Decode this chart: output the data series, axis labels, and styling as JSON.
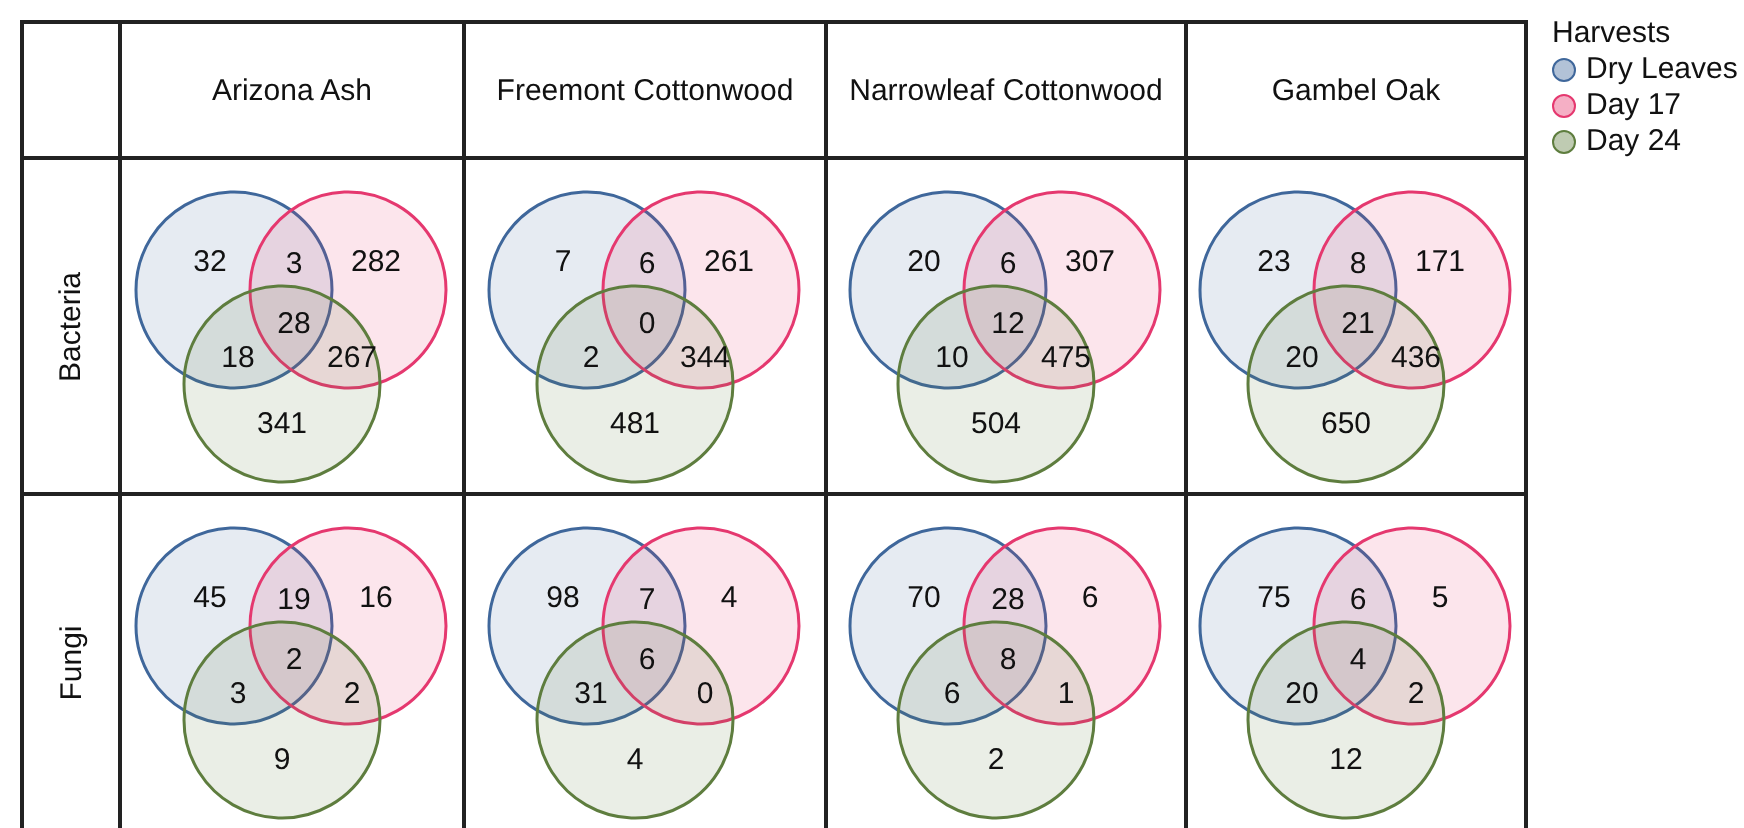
{
  "chart_data": [
    {
      "type": "other",
      "title": "Arizona Ash",
      "ylabel": "Bacteria",
      "categories": [
        null,
        null,
        null,
        null,
        null,
        null,
        null
      ],
      "values": [
        32,
        3,
        282,
        28,
        18,
        267,
        341
      ],
      "data_labels": true
    },
    {
      "type": "other",
      "title": "Freemont Cottonwood",
      "categories": [
        null,
        null,
        null,
        null,
        null,
        null,
        null
      ],
      "values": [
        7,
        6,
        261,
        0,
        2,
        344,
        481
      ],
      "data_labels": true
    },
    {
      "type": "other",
      "title": "Narrowleaf Cottonwood",
      "categories": [
        null,
        null,
        null,
        null,
        null,
        null,
        null
      ],
      "values": [
        20,
        6,
        307,
        12,
        10,
        475,
        504
      ],
      "data_labels": true
    },
    {
      "type": "other",
      "title": "Gambel Oak",
      "categories": [
        null,
        null,
        null,
        null,
        null,
        null,
        null
      ],
      "values": [
        23,
        8,
        171,
        21,
        20,
        436,
        650
      ],
      "data_labels": true
    },
    {
      "type": "other",
      "ylabel": "Fungi",
      "categories": [
        null,
        null,
        null,
        null,
        null,
        null,
        null
      ],
      "values": [
        45,
        19,
        16,
        2,
        3,
        2,
        9
      ],
      "data_labels": true
    },
    {
      "type": "other",
      "categories": [
        null,
        null,
        null,
        null,
        null,
        null,
        null
      ],
      "values": [
        98,
        7,
        4,
        6,
        31,
        0,
        4
      ],
      "data_labels": true
    },
    {
      "type": "other",
      "categories": [
        null,
        null,
        null,
        null,
        null,
        null,
        null
      ],
      "values": [
        70,
        28,
        6,
        8,
        6,
        1,
        2
      ],
      "data_labels": true
    },
    {
      "type": "other",
      "categories": [
        null,
        null,
        null,
        null,
        null,
        null,
        null
      ],
      "values": [
        75,
        6,
        5,
        4,
        20,
        2,
        12
      ],
      "data_labels": true
    },
    {
      "type": "other",
      "legend": "right",
      "legend_title": "Harvests",
      "series": [
        {
          "name": "Dry Leaves",
          "color": "#3f679b"
        },
        {
          "name": "Day 17",
          "color": "#e5386f"
        },
        {
          "name": "Day 24",
          "color": "#5e7d3e"
        }
      ]
    }
  ]
}
